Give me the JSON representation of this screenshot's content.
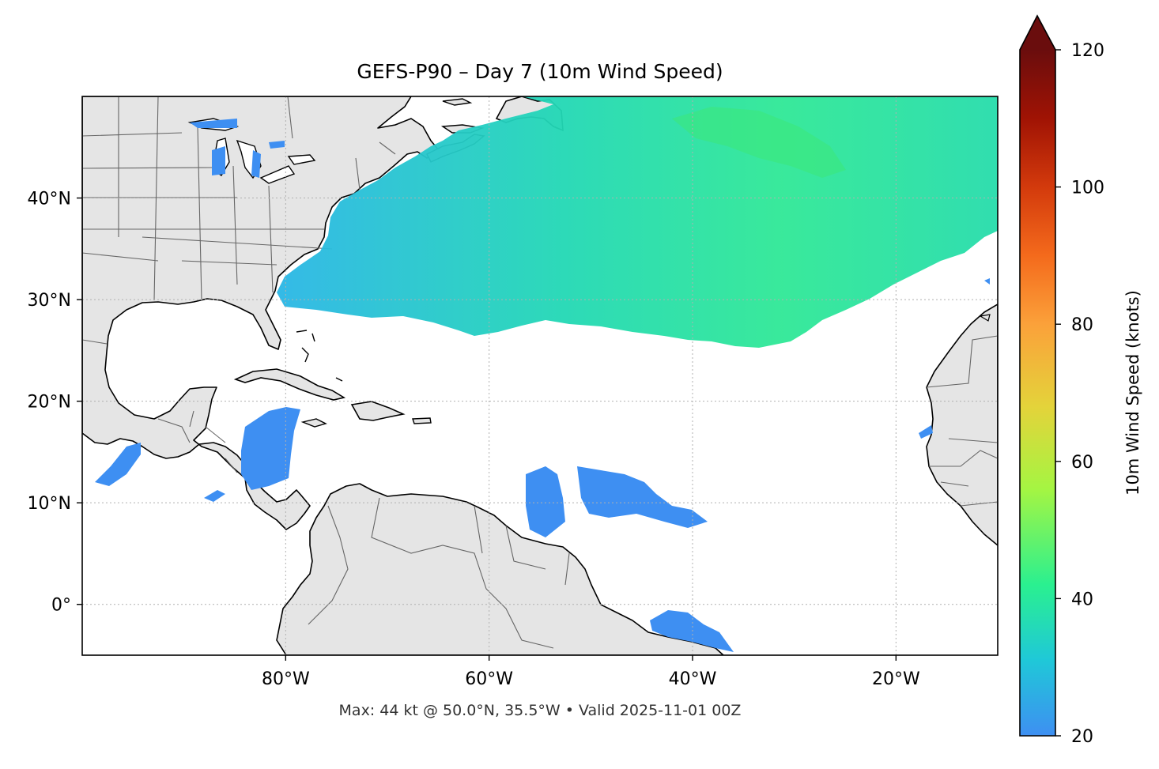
{
  "title": "GEFS-P90 – Day 7 (10m Wind Speed)",
  "footer": "Max: 44 kt @ 50.0°N, 35.5°W • Valid 2025-11-01 00Z",
  "map": {
    "lon_range": [
      -100,
      -10
    ],
    "lat_range": [
      -5,
      50
    ],
    "lon_ticks": [
      {
        "value": -80,
        "label": "80°W"
      },
      {
        "value": -60,
        "label": "60°W"
      },
      {
        "value": -40,
        "label": "40°W"
      },
      {
        "value": -20,
        "label": "20°W"
      }
    ],
    "lat_ticks": [
      {
        "value": 0,
        "label": "0°"
      },
      {
        "value": 10,
        "label": "10°N"
      },
      {
        "value": 20,
        "label": "20°N"
      },
      {
        "value": 30,
        "label": "30°N"
      },
      {
        "value": 40,
        "label": "40°N"
      }
    ],
    "land_color": "#e5e5e5",
    "coast_color": "#000000",
    "border_color": "#666666",
    "grid": true
  },
  "colorbar": {
    "label": "10m Wind Speed (knots)",
    "range": [
      20,
      120
    ],
    "ticks": [
      {
        "value": 20,
        "label": "20"
      },
      {
        "value": 40,
        "label": "40"
      },
      {
        "value": 60,
        "label": "60"
      },
      {
        "value": 80,
        "label": "80"
      },
      {
        "value": 100,
        "label": "100"
      },
      {
        "value": 120,
        "label": "120"
      }
    ],
    "extend": "max",
    "colormap": "turbo",
    "colors": [
      "#3e8ff2",
      "#1fc8d8",
      "#2af090",
      "#a5f542",
      "#e4d33a",
      "#fba13a",
      "#f46a1c",
      "#d33a0c",
      "#a01304",
      "#6a0d0d"
    ]
  },
  "max_point": {
    "value_kt": 44,
    "lat": 50.0,
    "lon": -35.5
  }
}
